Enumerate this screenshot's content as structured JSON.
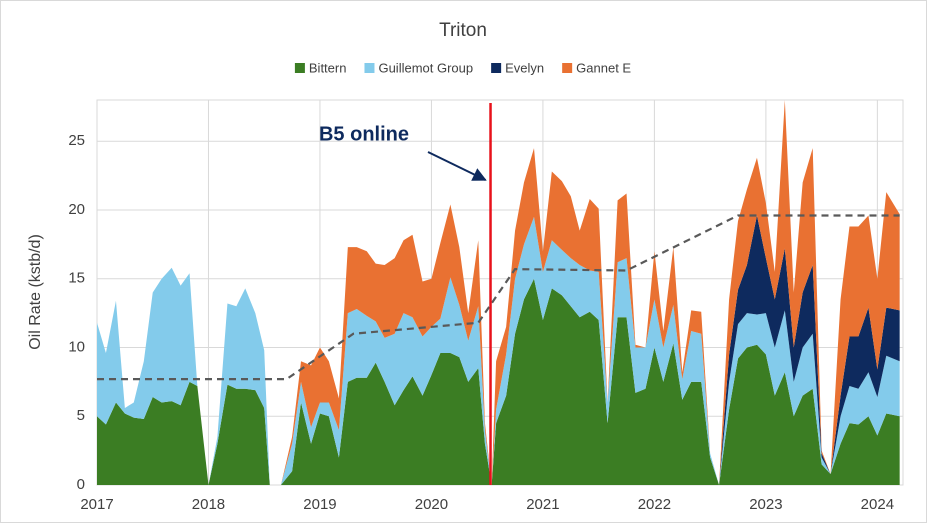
{
  "chart_data": {
    "type": "stacked_area",
    "title": "Triton",
    "ylabel": "Oil Rate (kstb/d)",
    "legend": "top",
    "grid": true,
    "xlim": [
      2017,
      2024.23
    ],
    "xticks": [
      2017,
      2018,
      2019,
      2020,
      2021,
      2022,
      2023,
      2024
    ],
    "ylim": [
      0,
      28
    ],
    "yticks": [
      0,
      5,
      10,
      15,
      20,
      25
    ],
    "x": [
      2017.0,
      2017.08,
      2017.17,
      2017.25,
      2017.33,
      2017.42,
      2017.5,
      2017.58,
      2017.67,
      2017.75,
      2017.83,
      2017.9,
      2018.0,
      2018.08,
      2018.17,
      2018.25,
      2018.33,
      2018.42,
      2018.5,
      2018.55,
      2018.65,
      2018.75,
      2018.83,
      2018.92,
      2019.0,
      2019.08,
      2019.17,
      2019.25,
      2019.33,
      2019.42,
      2019.5,
      2019.58,
      2019.67,
      2019.75,
      2019.83,
      2019.92,
      2020.0,
      2020.08,
      2020.17,
      2020.25,
      2020.33,
      2020.42,
      2020.48,
      2020.54,
      2020.58,
      2020.67,
      2020.75,
      2020.83,
      2020.92,
      2021.0,
      2021.08,
      2021.17,
      2021.25,
      2021.33,
      2021.42,
      2021.5,
      2021.58,
      2021.67,
      2021.75,
      2021.83,
      2021.92,
      2022.0,
      2022.08,
      2022.17,
      2022.25,
      2022.33,
      2022.42,
      2022.5,
      2022.58,
      2022.67,
      2022.75,
      2022.83,
      2022.92,
      2023.0,
      2023.08,
      2023.17,
      2023.25,
      2023.33,
      2023.42,
      2023.5,
      2023.58,
      2023.67,
      2023.75,
      2023.83,
      2023.92,
      2024.0,
      2024.08,
      2024.2
    ],
    "series": [
      {
        "name": "Bittern",
        "color": "#3b7d23",
        "values": [
          5,
          4.4,
          6,
          5.2,
          4.9,
          4.8,
          6.4,
          6,
          6.1,
          5.8,
          7.5,
          7.2,
          0,
          3,
          7.3,
          7,
          7,
          6.9,
          5.6,
          0,
          0,
          1,
          6,
          3,
          5.2,
          5,
          2,
          7.5,
          7.8,
          7.8,
          8.9,
          7.5,
          5.8,
          6.9,
          7.9,
          6.5,
          8,
          9.6,
          9.6,
          9.3,
          7.5,
          8.5,
          3,
          0,
          4.5,
          6.5,
          11,
          13.5,
          15,
          12,
          14.3,
          13.8,
          13,
          12.2,
          12.6,
          12,
          4.5,
          12.2,
          12.2,
          6.7,
          7,
          10,
          7.5,
          10.3,
          6.2,
          7.5,
          7.5,
          2,
          0,
          5.5,
          9.2,
          10,
          10.2,
          9.5,
          6.5,
          8.2,
          5,
          6.5,
          7,
          1.5,
          0.8,
          3,
          4.5,
          4.4,
          5,
          3.6,
          5.2,
          5
        ]
      },
      {
        "name": "Guillemot Group",
        "color": "#83cbeb",
        "values": [
          6.8,
          5.2,
          7.4,
          0.4,
          1.1,
          4.2,
          7.6,
          9,
          9.7,
          8.7,
          7.9,
          0,
          0,
          0.5,
          5.9,
          6,
          7.3,
          5.6,
          4.2,
          0,
          0,
          2,
          1.5,
          1.2,
          0.8,
          1,
          2,
          5,
          5,
          4.5,
          3,
          3.2,
          5.2,
          5.6,
          4.3,
          4.3,
          3.5,
          2.5,
          5.5,
          3.8,
          3,
          4.5,
          1,
          0,
          1,
          3,
          4,
          4,
          4.5,
          3.5,
          3.5,
          3.3,
          3.5,
          3.8,
          3,
          3.5,
          1.5,
          4,
          4.3,
          3.3,
          3,
          3.5,
          2.5,
          2.8,
          1.5,
          3.7,
          3.5,
          0.3,
          0,
          2,
          2.5,
          2.5,
          2.2,
          3,
          3.5,
          4.5,
          2.5,
          3.5,
          4,
          0.5,
          0,
          2,
          2.7,
          2.6,
          3.2,
          2.8,
          4.2,
          4
        ]
      },
      {
        "name": "Evelyn",
        "color": "#0e2a5e",
        "values": [
          0,
          0,
          0,
          0,
          0,
          0,
          0,
          0,
          0,
          0,
          0,
          0,
          0,
          0,
          0,
          0,
          0,
          0,
          0,
          0,
          0,
          0,
          0,
          0,
          0,
          0,
          0,
          0,
          0,
          0,
          0,
          0,
          0,
          0,
          0,
          0,
          0,
          0,
          0,
          0,
          0,
          0,
          0,
          0,
          0,
          0,
          0,
          0,
          0,
          0,
          0,
          0,
          0,
          0,
          0,
          0,
          0,
          0,
          0,
          0,
          0,
          0,
          0,
          0,
          0,
          0,
          0,
          0,
          0,
          2,
          2.5,
          3.5,
          7.2,
          4,
          3.5,
          4.5,
          2.5,
          4,
          5,
          0.3,
          0,
          1.5,
          3.6,
          3.8,
          4.7,
          2,
          3.5,
          3.7
        ]
      },
      {
        "name": "Gannet E",
        "color": "#e97132",
        "values": [
          0,
          0,
          0,
          0,
          0,
          0,
          0,
          0,
          0,
          0,
          0,
          0,
          0,
          0,
          0,
          0,
          0,
          0,
          0,
          0,
          0,
          0.5,
          1.5,
          4.5,
          4,
          3,
          2.3,
          4.8,
          4.5,
          4.7,
          4.2,
          5.3,
          5.5,
          5.3,
          6,
          4,
          3.5,
          5.5,
          5.3,
          4.2,
          2,
          4.8,
          0.5,
          0,
          3.5,
          2,
          3.5,
          4.5,
          5,
          1.5,
          5,
          5,
          4.5,
          2.5,
          5.2,
          4.6,
          0,
          4.5,
          4.7,
          0.2,
          0,
          3.5,
          1.2,
          4.2,
          0.5,
          1.5,
          1.6,
          0,
          0,
          4,
          5,
          5.5,
          4.2,
          4,
          2,
          10.8,
          4,
          8,
          8.5,
          0.2,
          0,
          7,
          8,
          8,
          6.7,
          6.6,
          8.4,
          7
        ]
      }
    ],
    "reference_line": {
      "color": "#595959",
      "x": [
        2017.0,
        2018.7,
        2019.3,
        2020.42,
        2020.75,
        2021.75,
        2022.75,
        2024.2
      ],
      "values": [
        7.7,
        7.7,
        11,
        11.8,
        15.7,
        15.6,
        19.6,
        19.6
      ]
    },
    "event_line": {
      "x": 2020.53,
      "color": "#e8111b"
    },
    "annotation": {
      "text": "B5 online",
      "color": "#0e2a5e"
    }
  }
}
